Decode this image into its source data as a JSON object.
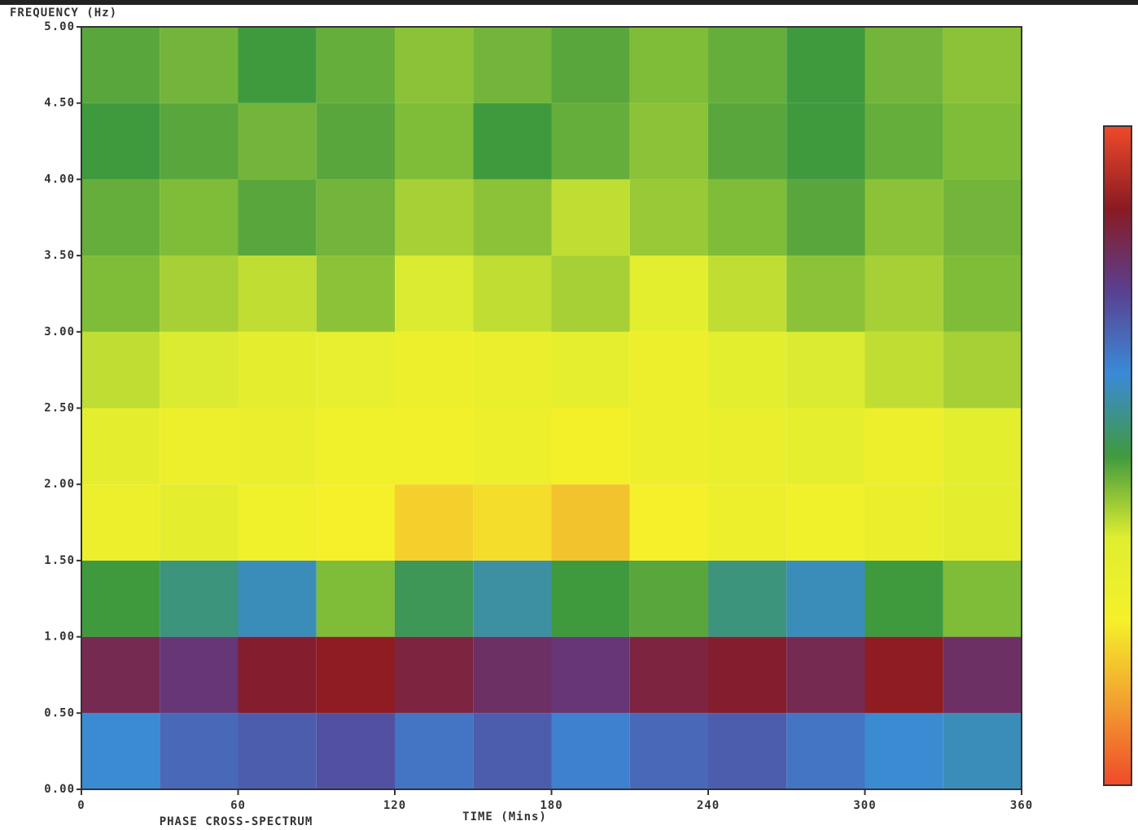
{
  "chart_data": {
    "type": "heatmap",
    "y_label": "FREQUENCY (Hz)",
    "x_label": "TIME (Mins)",
    "caption": "PHASE CROSS-SPECTRUM",
    "xlim": [
      0,
      360
    ],
    "xticks": [
      0,
      60,
      120,
      180,
      240,
      300,
      360
    ],
    "ylim": [
      0,
      5
    ],
    "yticks": [
      {
        "value": 0,
        "label": "0.00"
      },
      {
        "value": 0.5,
        "label": "0.50"
      },
      {
        "value": 1,
        "label": "1.00"
      },
      {
        "value": 1.5,
        "label": "1.50"
      },
      {
        "value": 2,
        "label": "2.00"
      },
      {
        "value": 2.5,
        "label": "2.50"
      },
      {
        "value": 3,
        "label": "3.00"
      },
      {
        "value": 3.5,
        "label": "3.50"
      },
      {
        "value": 4,
        "label": "4.00"
      },
      {
        "value": 4.5,
        "label": "4.50"
      },
      {
        "value": 5,
        "label": "5.00"
      }
    ],
    "xbins": [
      0,
      30,
      60,
      90,
      120,
      150,
      180,
      210,
      240,
      270,
      300,
      330,
      360
    ],
    "ybins": [
      0,
      0.5,
      1,
      1.5,
      2,
      2.5,
      3,
      3.5,
      4,
      4.5,
      5
    ],
    "zlim": [
      0,
      1
    ],
    "colorbar_colors": [
      "#f04a2a",
      "#f2a030",
      "#f5f02a",
      "#e0ee30",
      "#3f9a3e",
      "#3a8ad8",
      "#5a3f90",
      "#8a1a22",
      "#f04a2a"
    ],
    "z": [
      [
        0.62,
        0.68,
        0.7,
        0.72,
        0.66,
        0.7,
        0.64,
        0.68,
        0.7,
        0.66,
        0.62,
        0.6
      ],
      [
        0.82,
        0.78,
        0.86,
        0.88,
        0.84,
        0.8,
        0.78,
        0.84,
        0.86,
        0.82,
        0.88,
        0.8
      ],
      [
        0.5,
        0.55,
        0.6,
        0.45,
        0.52,
        0.58,
        0.5,
        0.48,
        0.55,
        0.6,
        0.5,
        0.45
      ],
      [
        0.3,
        0.35,
        0.28,
        0.25,
        0.2,
        0.22,
        0.18,
        0.25,
        0.3,
        0.28,
        0.32,
        0.35
      ],
      [
        0.35,
        0.3,
        0.32,
        0.28,
        0.27,
        0.3,
        0.26,
        0.3,
        0.32,
        0.34,
        0.3,
        0.36
      ],
      [
        0.4,
        0.38,
        0.35,
        0.33,
        0.3,
        0.32,
        0.34,
        0.3,
        0.36,
        0.38,
        0.4,
        0.42
      ],
      [
        0.45,
        0.42,
        0.4,
        0.44,
        0.38,
        0.4,
        0.42,
        0.36,
        0.4,
        0.44,
        0.42,
        0.45
      ],
      [
        0.47,
        0.45,
        0.48,
        0.46,
        0.42,
        0.44,
        0.4,
        0.43,
        0.45,
        0.48,
        0.44,
        0.46
      ],
      [
        0.5,
        0.48,
        0.46,
        0.48,
        0.45,
        0.5,
        0.47,
        0.44,
        0.48,
        0.5,
        0.47,
        0.45
      ],
      [
        0.48,
        0.46,
        0.5,
        0.47,
        0.44,
        0.46,
        0.48,
        0.45,
        0.47,
        0.5,
        0.46,
        0.44
      ]
    ]
  }
}
